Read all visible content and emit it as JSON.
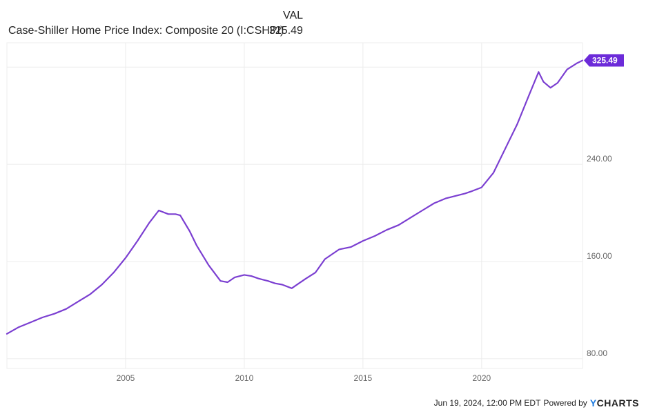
{
  "legend": {
    "header": "VAL",
    "series_name": "Case-Shiller Home Price Index: Composite 20 (I:CSHPI)",
    "series_value": "325.49"
  },
  "footer": {
    "timestamp": "Jun 19, 2024, 12:00 PM EDT",
    "powered_by": "Powered by",
    "brand_y": "Y",
    "brand_rest": "CHARTS"
  },
  "colors": {
    "line": "#7b3fd1",
    "badge": "#6c2bd9",
    "grid": "#ececec",
    "axis_text": "#666666"
  },
  "chart_data": {
    "type": "line",
    "title": "",
    "xlabel": "",
    "ylabel": "",
    "x_ticks": [
      "2005",
      "2010",
      "2015",
      "2020"
    ],
    "y_ticks": [
      "80.00",
      "160.00",
      "240.00"
    ],
    "xlim": [
      2000.0,
      2024.25
    ],
    "ylim": [
      72,
      340
    ],
    "grid": true,
    "last_value_label": "325.49",
    "series": [
      {
        "name": "Case-Shiller Home Price Index: Composite 20 (I:CSHPI)",
        "x": [
          2000.0,
          2000.5,
          2001.0,
          2001.5,
          2002.0,
          2002.5,
          2003.0,
          2003.5,
          2004.0,
          2004.5,
          2005.0,
          2005.5,
          2006.0,
          2006.4,
          2006.8,
          2007.1,
          2007.3,
          2007.7,
          2008.0,
          2008.5,
          2009.0,
          2009.3,
          2009.6,
          2010.0,
          2010.3,
          2010.6,
          2011.0,
          2011.3,
          2011.6,
          2012.0,
          2012.3,
          2012.6,
          2013.0,
          2013.4,
          2014.0,
          2014.5,
          2015.0,
          2015.5,
          2016.0,
          2016.5,
          2017.0,
          2017.5,
          2018.0,
          2018.5,
          2018.9,
          2019.3,
          2019.6,
          2020.0,
          2020.5,
          2021.0,
          2021.5,
          2022.0,
          2022.4,
          2022.6,
          2022.9,
          2023.2,
          2023.6,
          2024.0,
          2024.25
        ],
        "values": [
          100.5,
          106,
          110,
          114,
          117,
          121,
          127,
          133,
          141,
          151,
          163,
          177,
          192,
          202,
          199,
          199,
          198,
          185,
          173,
          157,
          144,
          143,
          147,
          149,
          148,
          146,
          144,
          142,
          141,
          138,
          142,
          146,
          151,
          162,
          170,
          172,
          177,
          181,
          186,
          190,
          196,
          202,
          208,
          212,
          214,
          216,
          218,
          221,
          233,
          253,
          273,
          297,
          316,
          308,
          303,
          307,
          318,
          323,
          325.49
        ]
      }
    ]
  }
}
